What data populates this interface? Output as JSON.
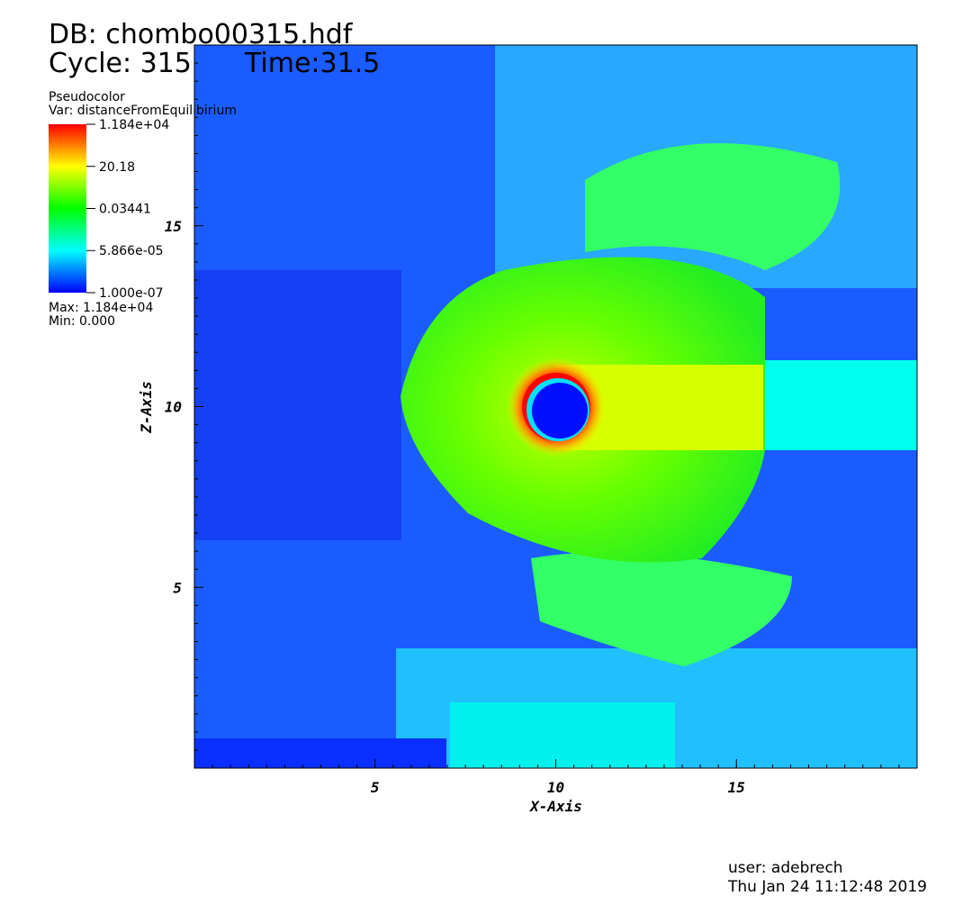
{
  "header": {
    "db": "DB: chombo00315.hdf",
    "cycle": "Cycle: 315",
    "time": "Time:31.5"
  },
  "legend": {
    "plot": "Pseudocolor",
    "var": "Var: distanceFromEquilibirium",
    "ticks": [
      {
        "value": 11840,
        "label": "1.184e+04"
      },
      {
        "value": 20.18,
        "label": "20.18"
      },
      {
        "value": 0.03441,
        "label": "0.03441"
      },
      {
        "value": 5.866e-05,
        "label": "5.866e-05"
      },
      {
        "value": 1e-07,
        "label": "1.000e-07"
      }
    ],
    "max": "Max:  1.184e+04",
    "min": "Min:  0.000"
  },
  "axes": {
    "xlabel": "X-Axis",
    "ylabel": "Z-Axis",
    "xlim": [
      0,
      20
    ],
    "ylim": [
      0,
      20
    ],
    "xticks": [
      5,
      10,
      15
    ],
    "yticks": [
      5,
      10,
      15
    ]
  },
  "footer": {
    "user": "user: adebrech",
    "date": "Thu Jan 24 11:12:48 2019"
  }
}
